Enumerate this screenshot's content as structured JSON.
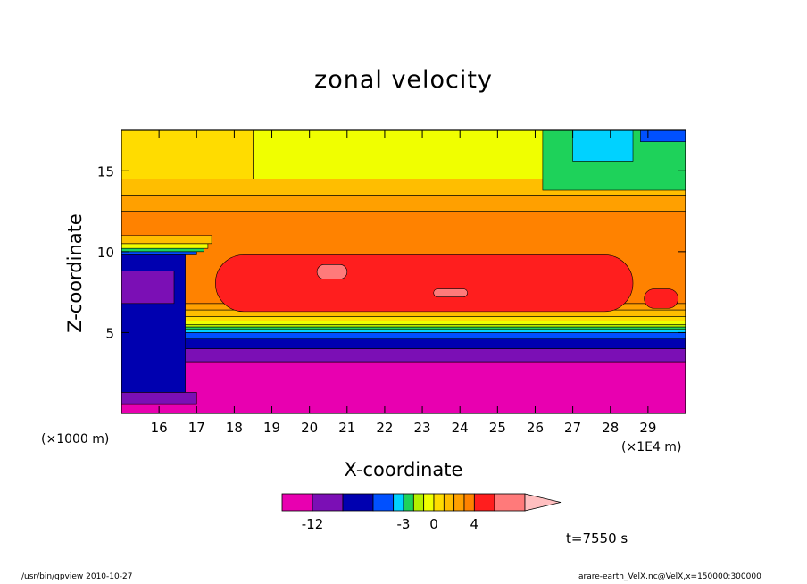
{
  "chart_data": {
    "type": "heatmap",
    "title": "zonal velocity",
    "xlabel": "X-coordinate",
    "ylabel": "Z-coordinate",
    "x_unit": "(×1E4 m)",
    "y_unit": "(×1000 m)",
    "x_ticks": [
      16,
      17,
      18,
      19,
      20,
      21,
      22,
      23,
      24,
      25,
      26,
      27,
      28,
      29
    ],
    "y_ticks": [
      5,
      10,
      15
    ],
    "xlim": [
      15,
      30
    ],
    "ylim": [
      0,
      17.5
    ],
    "time_label": "t=7550 s",
    "colorbar": {
      "labels": [
        {
          "text": "-12",
          "value": -12
        },
        {
          "text": "-3",
          "value": -3
        },
        {
          "text": "0",
          "value": 0
        },
        {
          "text": "4",
          "value": 4
        }
      ],
      "bounds": [
        -15,
        -12,
        -9,
        -6,
        -4,
        -3,
        -2,
        -1,
        0,
        1,
        2,
        3,
        4,
        6,
        9
      ],
      "colors": [
        "#e800b0",
        "#7b0fb5",
        "#0000b0",
        "#0050ff",
        "#00d2ff",
        "#1ed25a",
        "#b4f000",
        "#f0ff00",
        "#ffdc00",
        "#ffbe00",
        "#ffa000",
        "#ff8200",
        "#ff1e1e",
        "#ff7a7a",
        "#ffbfc0"
      ]
    },
    "regions": [
      {
        "level": "#e800b0",
        "x0": 15,
        "x1": 30,
        "z0": 0,
        "z1": 17.5
      },
      {
        "level": "#e800b0",
        "x0": 15,
        "x1": 30,
        "z0": 0,
        "z1": 3.2
      },
      {
        "level": "#7b0fb5",
        "x0": 15,
        "x1": 30,
        "z0": 3.2,
        "z1": 4.0
      },
      {
        "level": "#0000b0",
        "x0": 15,
        "x1": 30,
        "z0": 4.0,
        "z1": 4.6
      },
      {
        "level": "#0050ff",
        "x0": 15,
        "x1": 30,
        "z0": 4.6,
        "z1": 5.0
      },
      {
        "level": "#00d2ff",
        "x0": 15,
        "x1": 30,
        "z0": 5.0,
        "z1": 5.2
      },
      {
        "level": "#1ed25a",
        "x0": 15,
        "x1": 30,
        "z0": 5.2,
        "z1": 5.35
      },
      {
        "level": "#b4f000",
        "x0": 15,
        "x1": 30,
        "z0": 5.35,
        "z1": 5.5
      },
      {
        "level": "#f0ff00",
        "x0": 15,
        "x1": 30,
        "z0": 5.5,
        "z1": 5.7
      },
      {
        "level": "#ffdc00",
        "x0": 15,
        "x1": 30,
        "z0": 5.7,
        "z1": 6.0
      },
      {
        "level": "#ffbe00",
        "x0": 15,
        "x1": 30,
        "z0": 6.0,
        "z1": 6.4
      },
      {
        "level": "#ffa000",
        "x0": 15,
        "x1": 30,
        "z0": 6.4,
        "z1": 6.8
      },
      {
        "level": "#ff8200",
        "x0": 15,
        "x1": 30,
        "z0": 6.8,
        "z1": 12.5
      },
      {
        "level": "#ffa000",
        "x0": 15,
        "x1": 30,
        "z0": 12.5,
        "z1": 13.5
      },
      {
        "level": "#ffbe00",
        "x0": 15,
        "x1": 30,
        "z0": 13.5,
        "z1": 14.5
      },
      {
        "level": "#f0ff00",
        "x0": 18.5,
        "x1": 30,
        "z0": 14.5,
        "z1": 17.5
      },
      {
        "level": "#ffdc00",
        "x0": 15,
        "x1": 18.5,
        "z0": 14.5,
        "z1": 17.5
      },
      {
        "level": "#1ed25a",
        "x0": 26.2,
        "x1": 30,
        "z0": 13.8,
        "z1": 17.5
      },
      {
        "level": "#00d2ff",
        "x0": 27.0,
        "x1": 28.6,
        "z0": 15.6,
        "z1": 17.5
      },
      {
        "level": "#0050ff",
        "x0": 28.8,
        "x1": 30,
        "z0": 16.8,
        "z1": 17.5
      },
      {
        "level": "#ff1e1e",
        "x0": 17.5,
        "x1": 28.6,
        "z0": 6.3,
        "z1": 9.8
      },
      {
        "level": "#ff7a7a",
        "x0": 20.2,
        "x1": 21.0,
        "z0": 8.3,
        "z1": 9.2
      },
      {
        "level": "#ff7a7a",
        "x0": 23.3,
        "x1": 24.2,
        "z0": 7.2,
        "z1": 7.7
      },
      {
        "level": "#ff1e1e",
        "x0": 28.9,
        "x1": 29.8,
        "z0": 6.5,
        "z1": 7.7
      },
      {
        "level": "#0000b0",
        "x0": 15,
        "x1": 16.7,
        "z0": 1.3,
        "z1": 9.8
      },
      {
        "level": "#7b0fb5",
        "x0": 15,
        "x1": 16.4,
        "z0": 6.8,
        "z1": 8.8
      },
      {
        "level": "#7b0fb5",
        "x0": 15,
        "x1": 17.0,
        "z0": 0.6,
        "z1": 1.3
      },
      {
        "level": "#0050ff",
        "x0": 15,
        "x1": 17.0,
        "z0": 9.8,
        "z1": 10.0
      },
      {
        "level": "#1ed25a",
        "x0": 15,
        "x1": 17.2,
        "z0": 10.0,
        "z1": 10.2
      },
      {
        "level": "#f0ff00",
        "x0": 15,
        "x1": 17.3,
        "z0": 10.2,
        "z1": 10.5
      },
      {
        "level": "#ffbe00",
        "x0": 15,
        "x1": 17.4,
        "z0": 10.5,
        "z1": 11.0
      }
    ]
  },
  "footer": {
    "left": "/usr/bin/gpview   2010-10-27",
    "right": "arare-earth_VelX.nc@VelX,x=150000:300000"
  }
}
